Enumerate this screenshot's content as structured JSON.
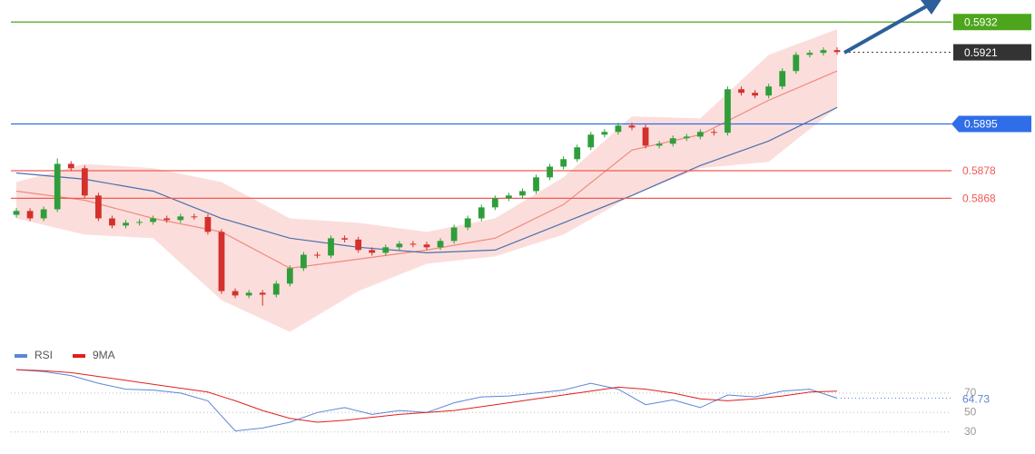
{
  "chart_data": [
    {
      "type": "candlestick",
      "ylim": [
        0.5818,
        0.594
      ],
      "up_color": "#2f9e3a",
      "down_color": "#d3312c",
      "open": [
        0.5862,
        0.58634,
        0.58607,
        0.5864,
        0.58805,
        0.58789,
        0.5869,
        0.58607,
        0.58581,
        0.58591,
        0.58594,
        0.58607,
        0.58601,
        0.58614,
        0.58612,
        0.58558,
        0.58343,
        0.58327,
        0.58337,
        0.5833,
        0.5837,
        0.58426,
        0.58475,
        0.58472,
        0.58535,
        0.5853,
        0.58492,
        0.58482,
        0.58502,
        0.58515,
        0.58512,
        0.58502,
        0.58525,
        0.58574,
        0.58607,
        0.58647,
        0.5868,
        0.5869,
        0.58706,
        0.58756,
        0.58795,
        0.58822,
        0.58865,
        0.58911,
        0.58921,
        0.58944,
        0.58937,
        0.58871,
        0.58878,
        0.58898,
        0.58904,
        0.58921,
        0.58918,
        0.59076,
        0.59063,
        0.59053,
        0.59086,
        0.59142,
        0.59201,
        0.59208,
        0.59218
      ],
      "high": [
        0.58644,
        0.58644,
        0.5865,
        0.58825,
        0.58815,
        0.58799,
        0.587,
        0.58617,
        0.58601,
        0.58604,
        0.58617,
        0.58617,
        0.58624,
        0.58624,
        0.58622,
        0.58568,
        0.58353,
        0.58347,
        0.58347,
        0.5838,
        0.58436,
        0.58485,
        0.58485,
        0.58545,
        0.58545,
        0.5854,
        0.58502,
        0.58512,
        0.58525,
        0.58525,
        0.58522,
        0.58535,
        0.58584,
        0.58617,
        0.58657,
        0.5869,
        0.587,
        0.58716,
        0.58766,
        0.58805,
        0.58832,
        0.58875,
        0.58921,
        0.58931,
        0.58954,
        0.58954,
        0.58947,
        0.58888,
        0.58908,
        0.58914,
        0.58931,
        0.58931,
        0.59086,
        0.59086,
        0.59073,
        0.59096,
        0.59152,
        0.59211,
        0.59218,
        0.59228,
        0.59228
      ],
      "low": [
        0.5861,
        0.58597,
        0.58597,
        0.5863,
        0.58779,
        0.5868,
        0.58597,
        0.58571,
        0.58571,
        0.58581,
        0.58584,
        0.58591,
        0.58591,
        0.58602,
        0.58548,
        0.58333,
        0.58317,
        0.58317,
        0.5829,
        0.5832,
        0.5836,
        0.58416,
        0.58462,
        0.58462,
        0.5852,
        0.58482,
        0.58472,
        0.58472,
        0.58492,
        0.58502,
        0.58492,
        0.58492,
        0.58515,
        0.58564,
        0.58597,
        0.58637,
        0.5867,
        0.5868,
        0.58696,
        0.58746,
        0.58785,
        0.58812,
        0.58855,
        0.58901,
        0.58911,
        0.58927,
        0.58861,
        0.58861,
        0.58868,
        0.58888,
        0.58894,
        0.58908,
        0.58908,
        0.59053,
        0.59043,
        0.59043,
        0.59076,
        0.59132,
        0.59191,
        0.59198,
        0.59201
      ],
      "close": [
        0.58634,
        0.58607,
        0.5864,
        0.58805,
        0.58789,
        0.5869,
        0.58607,
        0.58581,
        0.58591,
        0.58594,
        0.58607,
        0.58601,
        0.58614,
        0.58612,
        0.58558,
        0.58343,
        0.58327,
        0.58337,
        0.5833,
        0.5837,
        0.58426,
        0.58475,
        0.58472,
        0.58535,
        0.5853,
        0.58492,
        0.58482,
        0.58502,
        0.58515,
        0.58512,
        0.58502,
        0.58525,
        0.58574,
        0.58607,
        0.58647,
        0.5868,
        0.5869,
        0.58706,
        0.58756,
        0.58795,
        0.58822,
        0.58865,
        0.58911,
        0.58921,
        0.58944,
        0.58937,
        0.58871,
        0.58878,
        0.58898,
        0.58904,
        0.58921,
        0.58918,
        0.59076,
        0.59063,
        0.59053,
        0.59086,
        0.59142,
        0.59201,
        0.59208,
        0.59218,
        0.59211
      ],
      "band": {
        "color": "#f9d3cf",
        "x": [
          0,
          5,
          10,
          15,
          20,
          25,
          30,
          35,
          40,
          45,
          50,
          55,
          60
        ],
        "upper": [
          0.58739,
          0.58805,
          0.58789,
          0.58739,
          0.58607,
          0.58591,
          0.58558,
          0.58607,
          0.58756,
          0.58977,
          0.5897,
          0.59201,
          0.59294
        ],
        "lower": [
          0.58607,
          0.58548,
          0.58535,
          0.5831,
          0.58195,
          0.58343,
          0.58442,
          0.58469,
          0.58548,
          0.5869,
          0.58789,
          0.58812,
          0.5901
        ]
      },
      "lines": [
        {
          "color": "#f08a80",
          "x": [
            0,
            5,
            10,
            15,
            20,
            25,
            30,
            35,
            40,
            45,
            50,
            55,
            60
          ],
          "values": [
            0.58706,
            0.58673,
            0.58607,
            0.58558,
            0.58426,
            0.58459,
            0.58492,
            0.58535,
            0.58657,
            0.58855,
            0.58911,
            0.59036,
            0.59142
          ]
        },
        {
          "color": "#4a6fb0",
          "x": [
            0,
            5,
            10,
            15,
            20,
            25,
            30,
            35,
            40,
            45,
            50,
            55,
            60
          ],
          "values": [
            0.58772,
            0.58749,
            0.58706,
            0.58607,
            0.58535,
            0.58502,
            0.58482,
            0.58492,
            0.58591,
            0.5869,
            0.58799,
            0.58888,
            0.5901
          ]
        }
      ],
      "levels": [
        {
          "value": 0.5932,
          "color": "#4da51c",
          "label_style": "box",
          "line_style": "solid"
        },
        {
          "value": 0.5921,
          "color": "#333333",
          "label_style": "box",
          "line_style": "dotted"
        },
        {
          "value": 0.5895,
          "color": "#2f6ee8",
          "label_style": "pointer",
          "line_style": "solid"
        },
        {
          "value": 0.5878,
          "color": "#f05a55",
          "label_style": "text",
          "line_style": "solid"
        },
        {
          "value": 0.5868,
          "color": "#f05a55",
          "label_style": "text",
          "line_style": "solid"
        }
      ]
    },
    {
      "type": "line",
      "ylim": [
        12,
        96
      ],
      "yticks": [
        30,
        50,
        70
      ],
      "x": [
        0,
        2,
        4,
        6,
        8,
        10,
        12,
        14,
        16,
        18,
        20,
        22,
        24,
        26,
        28,
        30,
        32,
        34,
        36,
        38,
        40,
        42,
        44,
        46,
        48,
        50,
        52,
        54,
        56,
        58,
        60
      ],
      "series": [
        {
          "name": "RSI",
          "color": "#5b86d6",
          "values": [
            94,
            92,
            88,
            80,
            74,
            73,
            70,
            62,
            31,
            34,
            40,
            50,
            55,
            48,
            52,
            50,
            60,
            66,
            67,
            70,
            73,
            80,
            74,
            58,
            63,
            55,
            68,
            66,
            72,
            74,
            64.73
          ]
        },
        {
          "name": "9MA",
          "color": "#e0201b",
          "values": [
            94,
            93,
            91,
            87,
            83,
            79,
            75,
            71,
            62,
            52,
            44,
            40,
            42,
            45,
            48,
            50,
            52,
            56,
            60,
            64,
            68,
            72,
            76,
            74,
            70,
            64,
            62,
            64,
            67,
            71,
            72
          ]
        }
      ]
    }
  ]
}
